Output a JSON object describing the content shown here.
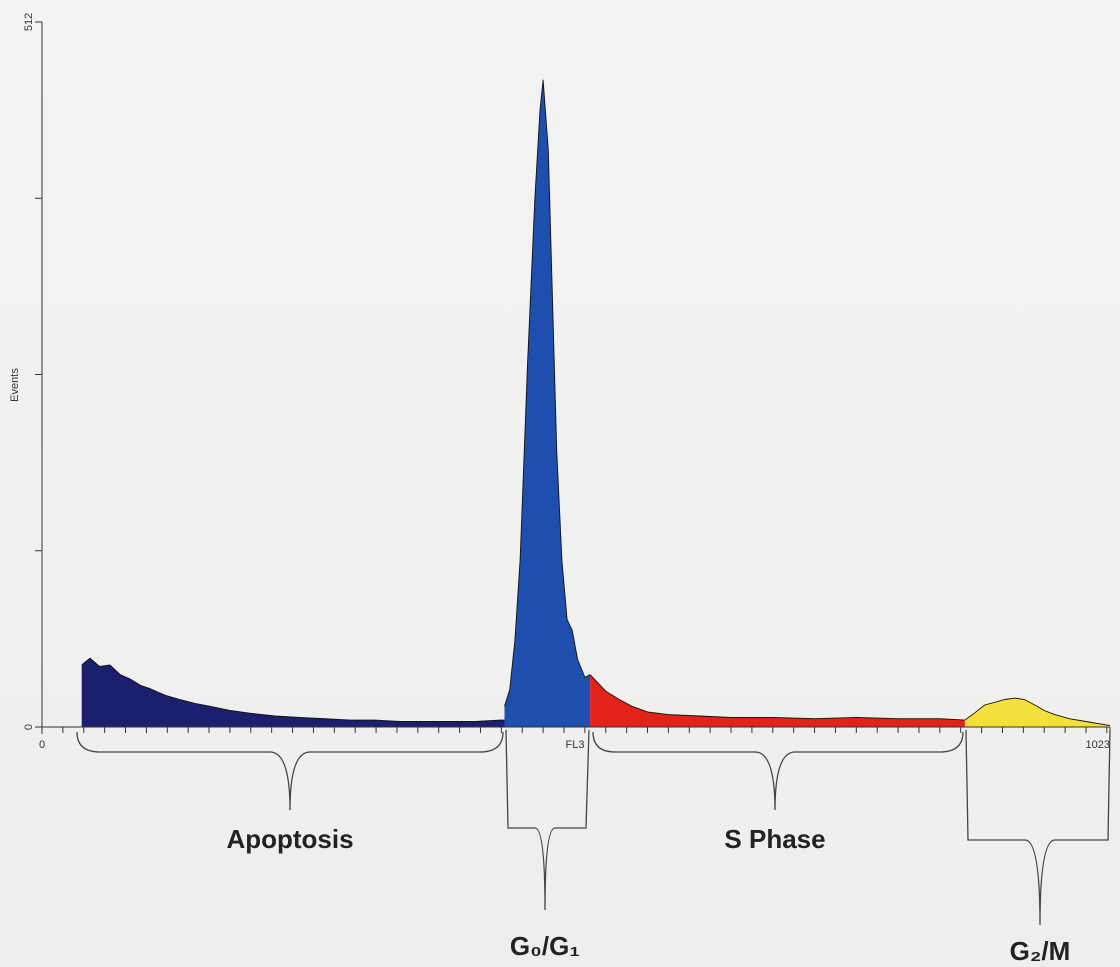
{
  "chart_data": {
    "type": "area",
    "ylabel": "Events",
    "xlabel": "FL3",
    "xlim": [
      0,
      1023
    ],
    "ylim": [
      0,
      512
    ],
    "xticks": [
      0,
      1023
    ],
    "yticks": [
      0,
      512
    ],
    "x_minor_ticks": [
      20,
      40,
      60,
      80,
      100,
      120,
      140,
      160,
      180,
      200,
      220,
      240,
      260,
      280,
      300,
      320,
      340,
      360,
      380,
      400,
      420,
      440,
      460,
      480,
      500,
      520,
      540,
      560,
      580,
      600,
      620,
      640,
      660,
      680,
      700,
      720,
      740,
      760,
      780,
      800,
      820,
      840,
      860,
      880,
      900,
      920,
      940,
      960,
      980,
      1000,
      1020
    ],
    "y_minor_ticks": [
      128,
      256,
      384
    ],
    "series": [
      {
        "name": "Apoptosis",
        "color": "#1c1f6e",
        "x": [
          38,
          46,
          55,
          65,
          75,
          84,
          95,
          103,
          118,
          132,
          147,
          161,
          180,
          199,
          223,
          247,
          271,
          295,
          319,
          343,
          367,
          391,
          415,
          439,
          443
        ],
        "values": [
          45,
          50,
          44,
          45,
          38,
          35,
          30,
          28,
          23,
          20,
          17,
          15,
          12,
          10,
          8,
          7,
          6,
          5,
          5,
          4,
          4,
          4,
          4,
          5,
          5
        ]
      },
      {
        "name": "G₀/G₁",
        "color": "#1f4fae",
        "x": [
          443,
          448,
          453,
          458,
          462,
          465,
          472,
          477,
          480,
          485,
          489,
          493,
          498,
          503,
          508,
          513,
          520,
          525
        ],
        "values": [
          15,
          27,
          63,
          121,
          201,
          263,
          383,
          448,
          470,
          419,
          310,
          201,
          121,
          78,
          70,
          49,
          36,
          38
        ]
      },
      {
        "name": "S Phase",
        "color": "#e2231a",
        "x": [
          525,
          530,
          540,
          553,
          565,
          580,
          600,
          630,
          660,
          700,
          740,
          780,
          820,
          860,
          884
        ],
        "values": [
          38,
          34,
          26,
          20,
          15,
          11,
          9,
          8,
          7,
          7,
          6,
          7,
          6,
          6,
          5
        ]
      },
      {
        "name": "G₂/M",
        "color": "#f3e03a",
        "x": [
          884,
          893,
          903,
          913,
          922,
          932,
          941,
          951,
          960,
          970,
          984,
          1000,
          1023
        ],
        "values": [
          5,
          10,
          16,
          18,
          20,
          21,
          20,
          16,
          12,
          9,
          6,
          4,
          1
        ]
      }
    ]
  }
}
